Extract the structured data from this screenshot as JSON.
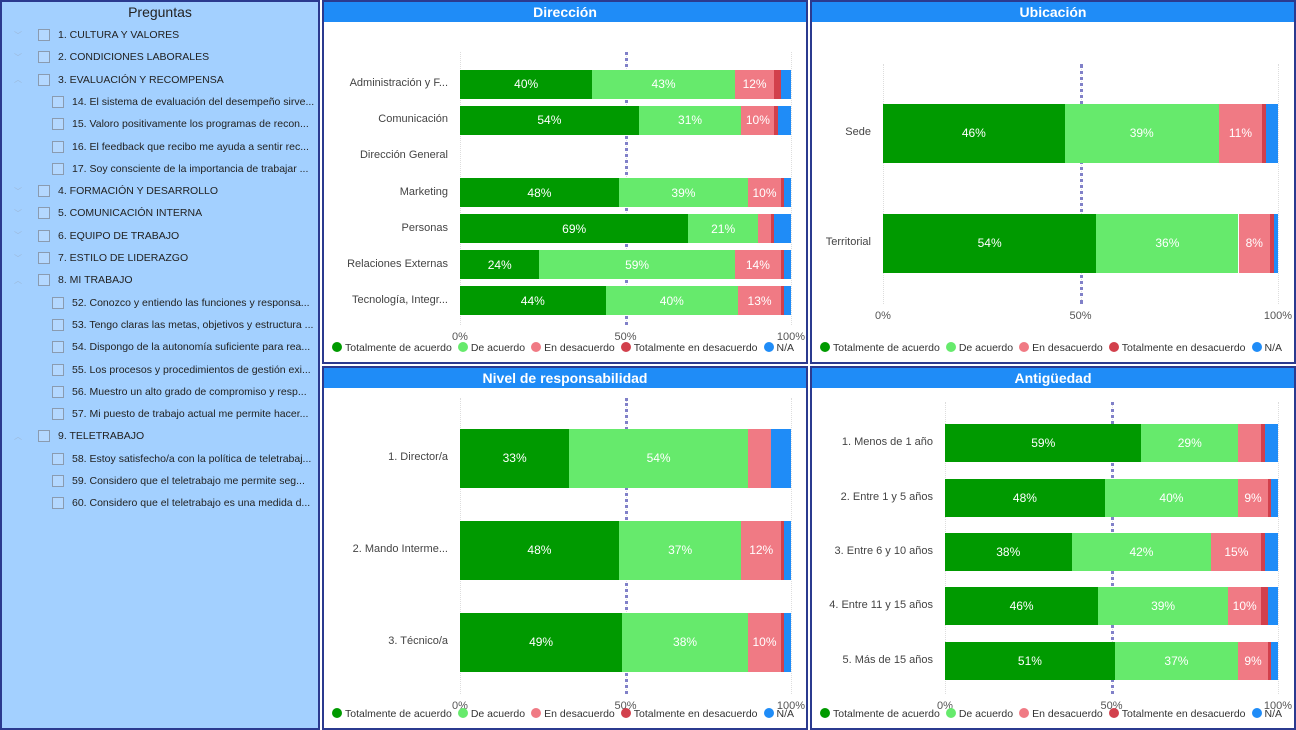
{
  "slicer": {
    "title": "Preguntas",
    "items": [
      {
        "label": "1. CULTURA Y VALORES",
        "level": 0
      },
      {
        "label": "2. CONDICIONES LABORALES",
        "level": 0
      },
      {
        "label": "3. EVALUACIÓN Y RECOMPENSA",
        "level": 0,
        "expanded": true
      },
      {
        "label": "14. El sistema de evaluación del desempeño sirve...",
        "level": 1
      },
      {
        "label": "15. Valoro positivamente los programas de recon...",
        "level": 1
      },
      {
        "label": "16. El feedback que recibo me ayuda a sentir rec...",
        "level": 1
      },
      {
        "label": "17. Soy consciente de la importancia de trabajar ...",
        "level": 1
      },
      {
        "label": "4. FORMACIÓN Y DESARROLLO",
        "level": 0
      },
      {
        "label": "5. COMUNICACIÓN INTERNA",
        "level": 0
      },
      {
        "label": "6. EQUIPO DE TRABAJO",
        "level": 0
      },
      {
        "label": "7. ESTILO DE LIDERAZGO",
        "level": 0
      },
      {
        "label": "8. MI TRABAJO",
        "level": 0,
        "expanded": true
      },
      {
        "label": "52. Conozco y entiendo las funciones y responsa...",
        "level": 1
      },
      {
        "label": "53. Tengo claras las metas, objetivos y estructura ...",
        "level": 1
      },
      {
        "label": "54. Dispongo de la autonomía suficiente para rea...",
        "level": 1
      },
      {
        "label": "55. Los procesos y procedimientos de gestión exi...",
        "level": 1
      },
      {
        "label": "56. Muestro un alto grado de compromiso y resp...",
        "level": 1
      },
      {
        "label": "57. Mi puesto de trabajo actual me permite hacer...",
        "level": 1
      },
      {
        "label": "9. TELETRABAJO",
        "level": 0,
        "expanded": true
      },
      {
        "label": "58. Estoy satisfecho/a con la política de teletrabaj...",
        "level": 1
      },
      {
        "label": "59. Considero que el teletrabajo me permite seg...",
        "level": 1
      },
      {
        "label": "60. Considero que el teletrabajo es una medida d...",
        "level": 1
      }
    ]
  },
  "colors": {
    "header": "#1f8cf7",
    "slicer_bg": "#a3d0ff",
    "average_line": "#8080c8"
  },
  "legend": [
    {
      "name": "Totalmente de acuerdo",
      "color": "#009a00"
    },
    {
      "name": "De acuerdo",
      "color": "#66ea6c"
    },
    {
      "name": "En desacuerdo",
      "color": "#f07a84"
    },
    {
      "name": "Totalmente en desacuerdo",
      "color": "#d2404c"
    },
    {
      "name": "N/A",
      "color": "#1f8cf7"
    }
  ],
  "chart_data": [
    {
      "id": "direccion",
      "type": "bar",
      "stacked": "100%",
      "orientation": "horizontal",
      "title": "Dirección",
      "xlim": [
        0,
        100
      ],
      "xticks": [
        "0%",
        "50%",
        "100%"
      ],
      "reference_line": 50,
      "categories": [
        "Administración y F...",
        "Comunicación",
        "Dirección General",
        "Marketing",
        "Personas",
        "Relaciones Externas",
        "Tecnología, Integr..."
      ],
      "values": [
        [
          40,
          43,
          12,
          2,
          3
        ],
        [
          54,
          31,
          10,
          1,
          4
        ],
        [
          0,
          0,
          0,
          0,
          0
        ],
        [
          48,
          39,
          10,
          1,
          2
        ],
        [
          69,
          21,
          4,
          1,
          5
        ],
        [
          24,
          59,
          14,
          1,
          2
        ],
        [
          44,
          40,
          13,
          1,
          2
        ]
      ]
    },
    {
      "id": "ubicacion",
      "type": "bar",
      "stacked": "100%",
      "orientation": "horizontal",
      "title": "Ubicación",
      "xlim": [
        0,
        100
      ],
      "xticks": [
        "0%",
        "50%",
        "100%"
      ],
      "reference_line": 50,
      "categories": [
        "Sede",
        "Territorial"
      ],
      "values": [
        [
          46,
          39,
          11,
          1,
          3
        ],
        [
          54,
          36,
          8,
          1,
          1
        ]
      ]
    },
    {
      "id": "nivel",
      "type": "bar",
      "stacked": "100%",
      "orientation": "horizontal",
      "title": "Nivel de responsabilidad",
      "xlim": [
        0,
        100
      ],
      "xticks": [
        "0%",
        "50%",
        "100%"
      ],
      "reference_line": 50,
      "categories": [
        "1. Director/a",
        "2. Mando Interme...",
        "3. Técnico/a"
      ],
      "values": [
        [
          33,
          54,
          7,
          0,
          6
        ],
        [
          48,
          37,
          12,
          1,
          2
        ],
        [
          49,
          38,
          10,
          1,
          2
        ]
      ]
    },
    {
      "id": "antiguedad",
      "type": "bar",
      "stacked": "100%",
      "orientation": "horizontal",
      "title": "Antigüedad",
      "xlim": [
        0,
        100
      ],
      "xticks": [
        "0%",
        "50%",
        "100%"
      ],
      "reference_line": 50,
      "categories": [
        "1. Menos de 1 año",
        "2. Entre 1 y 5 años",
        "3. Entre 6 y 10 años",
        "4. Entre 11 y 15 años",
        "5. Más de 15 años"
      ],
      "values": [
        [
          59,
          29,
          7,
          1,
          4
        ],
        [
          48,
          40,
          9,
          1,
          2
        ],
        [
          38,
          42,
          15,
          1,
          4
        ],
        [
          46,
          39,
          10,
          2,
          3
        ],
        [
          51,
          37,
          9,
          1,
          2
        ]
      ]
    }
  ]
}
